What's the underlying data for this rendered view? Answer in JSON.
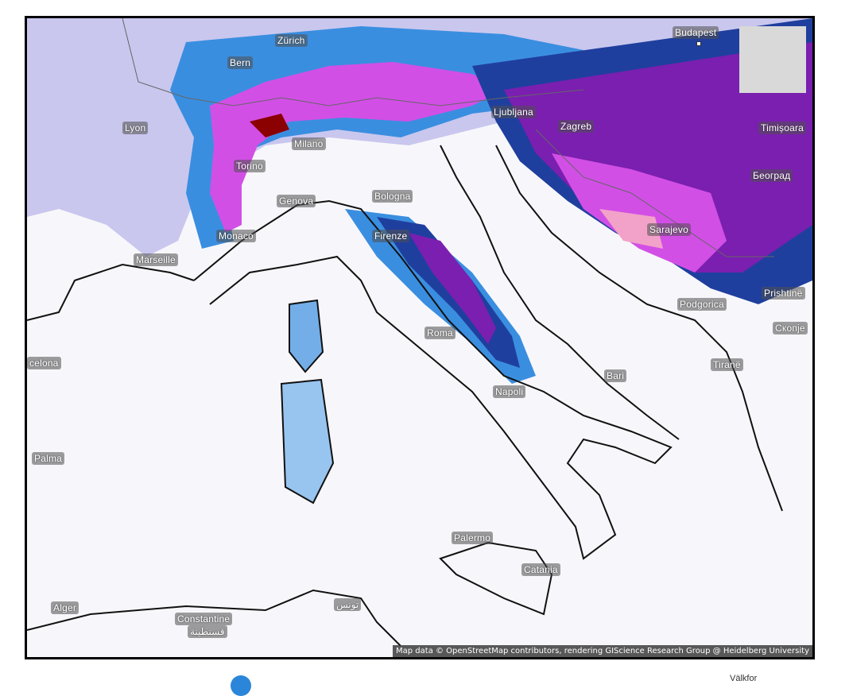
{
  "map": {
    "share_icon": "share-icon",
    "attribution": "Map data © OpenStreetMap contributors, rendering GIScience Research Group @ Heidelberg University",
    "colors": {
      "sea_land": "#f7f7fb",
      "light_snow": "#c9c7ee",
      "blue": "#3a8ee0",
      "dark_blue": "#1f3f9e",
      "purple": "#7a1fb0",
      "magenta": "#d24fe6",
      "pink": "#f2a2c8",
      "maroon": "#8b0000"
    },
    "cities": [
      {
        "name": "Budapest"
      },
      {
        "name": "Zürich"
      },
      {
        "name": "Bern"
      },
      {
        "name": "Lyon"
      },
      {
        "name": "Milano"
      },
      {
        "name": "Torino"
      },
      {
        "name": "Genova"
      },
      {
        "name": "Monaco"
      },
      {
        "name": "Marseille"
      },
      {
        "name": "Bologna"
      },
      {
        "name": "Firenze"
      },
      {
        "name": "Roma"
      },
      {
        "name": "Napoli"
      },
      {
        "name": "Bari"
      },
      {
        "name": "Palermo"
      },
      {
        "name": "Catania"
      },
      {
        "name": "Ljubljana"
      },
      {
        "name": "Zagreb"
      },
      {
        "name": "Timișoara"
      },
      {
        "name": "Београд"
      },
      {
        "name": "Sarajevo"
      },
      {
        "name": "Podgorica"
      },
      {
        "name": "Prishtinë"
      },
      {
        "name": "Скопје"
      },
      {
        "name": "Tiranë"
      },
      {
        "name": "celona"
      },
      {
        "name": "Palma"
      },
      {
        "name": "Alger"
      },
      {
        "name": "Constantine"
      },
      {
        "name": "قسنطينة"
      },
      {
        "name": "تونس"
      }
    ]
  },
  "footer": {
    "text": "Välkfor"
  }
}
